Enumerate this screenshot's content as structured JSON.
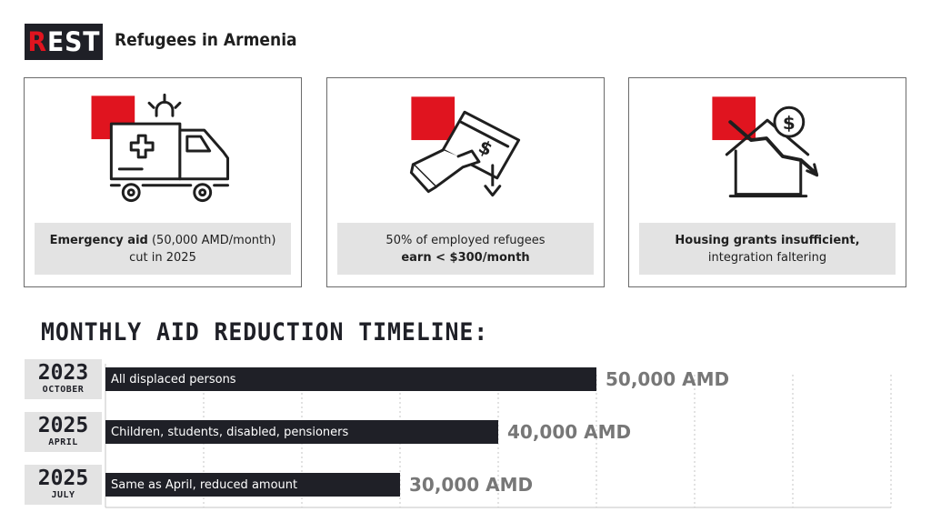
{
  "header": {
    "logo_prefix": "R",
    "logo_rest": "EST",
    "title": "Refugees in Armenia"
  },
  "cards": [
    {
      "icon": "ambulance-icon",
      "bold_text": "Emergency aid",
      "text": " (50,000 AMD/month)",
      "line2": "cut in 2025"
    },
    {
      "icon": "money-down-icon",
      "line1": "50% of employed refugees",
      "bold_line2": "earn < $300/month"
    },
    {
      "icon": "house-decline-icon",
      "bold_line1": "Housing grants insufficient,",
      "line2": "integration faltering"
    }
  ],
  "colors": {
    "accent": "#e0141f",
    "dark": "#1f2027",
    "gray_box": "#e3e3e3",
    "value_gray": "#777777"
  },
  "chart_data": {
    "type": "bar",
    "title": "MONTHLY AID REDUCTION TIMELINE:",
    "orientation": "horizontal",
    "unit": "AMD",
    "xlim": [
      0,
      80000
    ],
    "grid": true,
    "categories": [
      {
        "year": "2023",
        "month": "OCTOBER",
        "label": "All displaced persons"
      },
      {
        "year": "2025",
        "month": "APRIL",
        "label": "Children, students, disabled, pensioners"
      },
      {
        "year": "2025",
        "month": "JULY",
        "label": "Same as April, reduced amount"
      }
    ],
    "values": [
      50000,
      40000,
      30000
    ],
    "value_labels": [
      "50,000 AMD",
      "40,000 AMD",
      "30,000 AMD"
    ]
  }
}
